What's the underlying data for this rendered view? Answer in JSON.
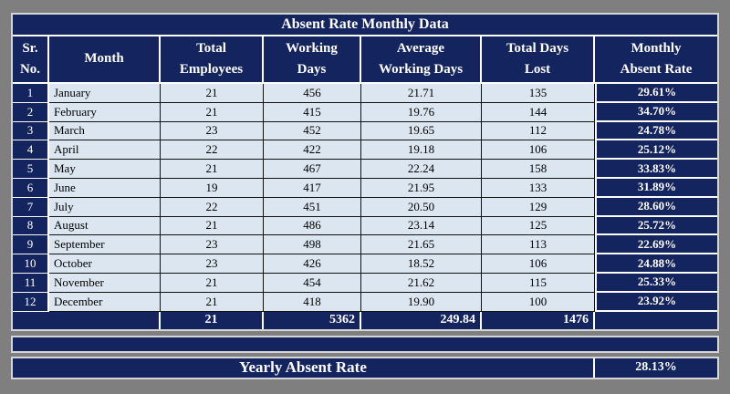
{
  "table": {
    "title": "Absent Rate Monthly Data",
    "columns": [
      "Sr.\nNo.",
      "Month",
      "Total\nEmployees",
      "Working\nDays",
      "Average\nWorking Days",
      "Total Days\nLost",
      "Monthly\nAbsent Rate"
    ],
    "rows": [
      {
        "sr": "1",
        "month": "January",
        "total_employees": "21",
        "working_days": "456",
        "avg_working_days": "21.71",
        "total_days_lost": "135",
        "absent_rate": "29.61%"
      },
      {
        "sr": "2",
        "month": "February",
        "total_employees": "21",
        "working_days": "415",
        "avg_working_days": "19.76",
        "total_days_lost": "144",
        "absent_rate": "34.70%"
      },
      {
        "sr": "3",
        "month": "March",
        "total_employees": "23",
        "working_days": "452",
        "avg_working_days": "19.65",
        "total_days_lost": "112",
        "absent_rate": "24.78%"
      },
      {
        "sr": "4",
        "month": "April",
        "total_employees": "22",
        "working_days": "422",
        "avg_working_days": "19.18",
        "total_days_lost": "106",
        "absent_rate": "25.12%"
      },
      {
        "sr": "5",
        "month": "May",
        "total_employees": "21",
        "working_days": "467",
        "avg_working_days": "22.24",
        "total_days_lost": "158",
        "absent_rate": "33.83%"
      },
      {
        "sr": "6",
        "month": "June",
        "total_employees": "19",
        "working_days": "417",
        "avg_working_days": "21.95",
        "total_days_lost": "133",
        "absent_rate": "31.89%"
      },
      {
        "sr": "7",
        "month": "July",
        "total_employees": "22",
        "working_days": "451",
        "avg_working_days": "20.50",
        "total_days_lost": "129",
        "absent_rate": "28.60%"
      },
      {
        "sr": "8",
        "month": "August",
        "total_employees": "21",
        "working_days": "486",
        "avg_working_days": "23.14",
        "total_days_lost": "125",
        "absent_rate": "25.72%"
      },
      {
        "sr": "9",
        "month": "September",
        "total_employees": "23",
        "working_days": "498",
        "avg_working_days": "21.65",
        "total_days_lost": "113",
        "absent_rate": "22.69%"
      },
      {
        "sr": "10",
        "month": "October",
        "total_employees": "23",
        "working_days": "426",
        "avg_working_days": "18.52",
        "total_days_lost": "106",
        "absent_rate": "24.88%"
      },
      {
        "sr": "11",
        "month": "November",
        "total_employees": "21",
        "working_days": "454",
        "avg_working_days": "21.62",
        "total_days_lost": "115",
        "absent_rate": "25.33%"
      },
      {
        "sr": "12",
        "month": "December",
        "total_employees": "21",
        "working_days": "418",
        "avg_working_days": "19.90",
        "total_days_lost": "100",
        "absent_rate": "23.92%"
      }
    ],
    "totals": {
      "total_employees": "21",
      "working_days": "5362",
      "avg_working_days": "249.84",
      "total_days_lost": "1476"
    },
    "footer": {
      "label": "Yearly Absent Rate",
      "value": "28.13%"
    }
  },
  "colors": {
    "navy": "#14245e",
    "light_cell": "#dce6f1",
    "page_background": "#7f7f7f",
    "border_white": "#ffffff"
  }
}
